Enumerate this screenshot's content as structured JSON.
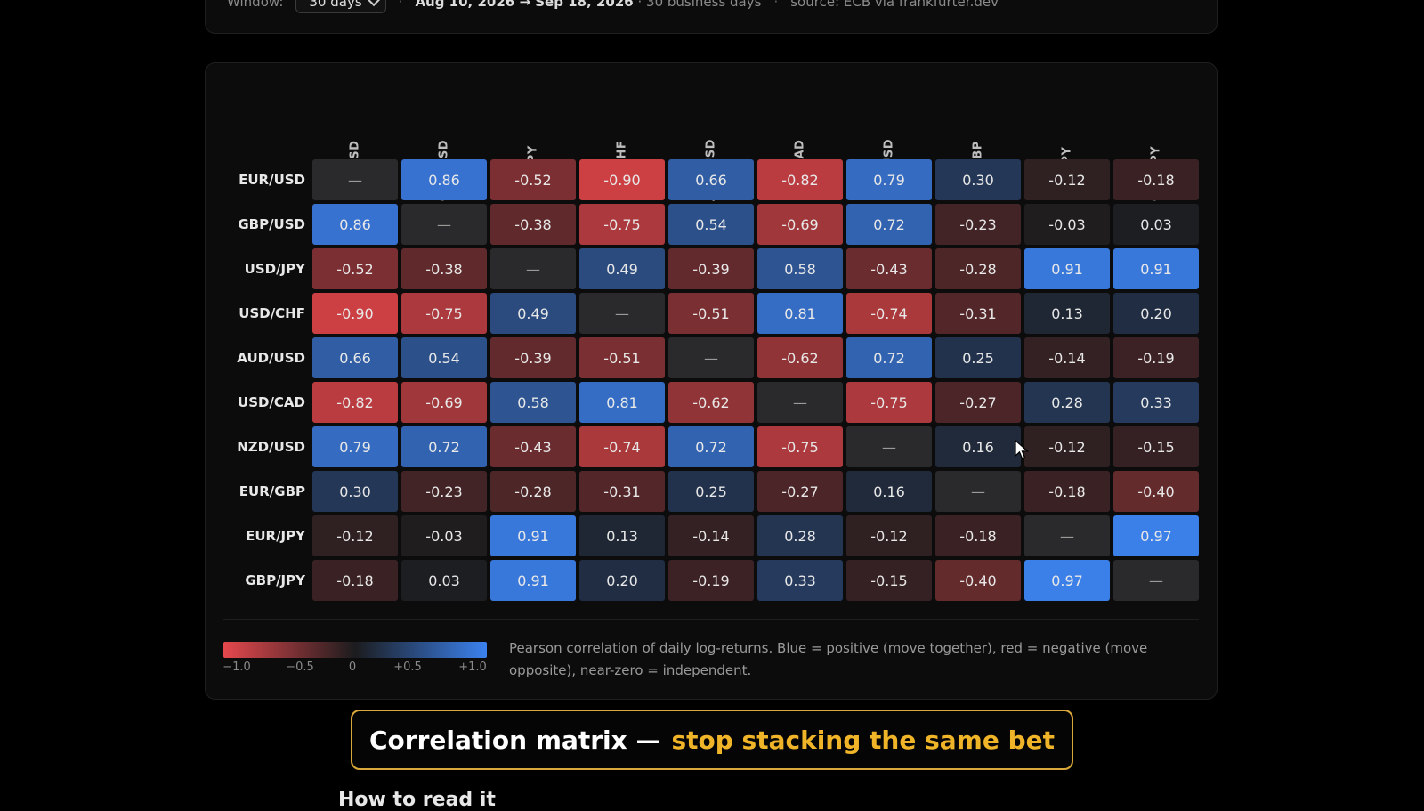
{
  "controls": {
    "window_label": "Window:",
    "window_value": "30 days",
    "dot1": "·",
    "range": "Aug 10, 2026 → Sep 18, 2026",
    "business_days": "· 30 business days",
    "dot2": "·",
    "source": "source: ECB via frankfurter.dev"
  },
  "matrix": {
    "pairs": [
      "EUR/USD",
      "GBP/USD",
      "USD/JPY",
      "USD/CHF",
      "AUD/USD",
      "USD/CAD",
      "NZD/USD",
      "EUR/GBP",
      "EUR/JPY",
      "GBP/JPY"
    ],
    "diagonal_label": "—",
    "values": [
      [
        null,
        0.86,
        -0.52,
        -0.9,
        0.66,
        -0.82,
        0.79,
        0.3,
        -0.12,
        -0.18
      ],
      [
        0.86,
        null,
        -0.38,
        -0.75,
        0.54,
        -0.69,
        0.72,
        -0.23,
        -0.03,
        0.03
      ],
      [
        -0.52,
        -0.38,
        null,
        0.49,
        -0.39,
        0.58,
        -0.43,
        -0.28,
        0.91,
        0.91
      ],
      [
        -0.9,
        -0.75,
        0.49,
        null,
        -0.51,
        0.81,
        -0.74,
        -0.31,
        0.13,
        0.2
      ],
      [
        0.66,
        0.54,
        -0.39,
        -0.51,
        null,
        -0.62,
        0.72,
        0.25,
        -0.14,
        -0.19
      ],
      [
        -0.82,
        -0.69,
        0.58,
        0.81,
        -0.62,
        null,
        -0.75,
        -0.27,
        0.28,
        0.33
      ],
      [
        0.79,
        0.72,
        -0.43,
        -0.74,
        0.72,
        -0.75,
        null,
        0.16,
        -0.12,
        -0.15
      ],
      [
        0.3,
        -0.23,
        -0.28,
        -0.31,
        0.25,
        -0.27,
        0.16,
        null,
        -0.18,
        -0.4
      ],
      [
        -0.12,
        -0.03,
        0.91,
        0.13,
        -0.14,
        0.28,
        -0.12,
        -0.18,
        null,
        0.97
      ],
      [
        -0.18,
        0.03,
        0.91,
        0.2,
        -0.19,
        0.33,
        -0.15,
        -0.4,
        0.97,
        null
      ]
    ]
  },
  "legend": {
    "ticks": [
      "−1.0",
      "−0.5",
      "0",
      "+0.5",
      "+1.0"
    ],
    "description": "Pearson correlation of daily log-returns. Blue = positive (move together), red = negative (move opposite), near-zero = independent.",
    "negative_color": "#e5484d",
    "positive_color": "#3b82f0"
  },
  "banner": {
    "part1": "Correlation matrix —",
    "part2": "stop stacking the same bet"
  },
  "section_heading": "How to read it"
}
